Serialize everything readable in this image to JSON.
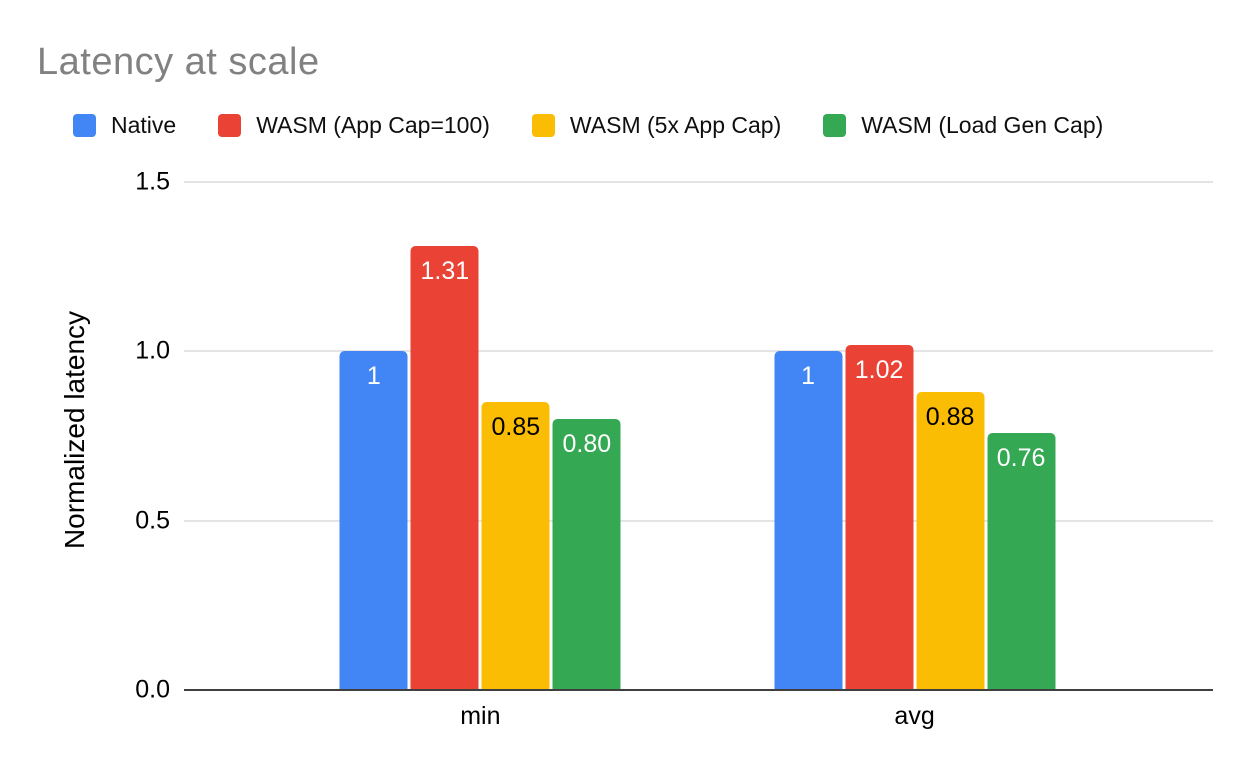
{
  "title": "Latency at scale",
  "colors": {
    "title_text": "#818181",
    "axis_baseline": "#3f3f3f",
    "gridline": "#e4e4e4",
    "background": "#ffffff",
    "label_text": "#000000"
  },
  "chart_data": {
    "type": "bar",
    "title": "Latency at scale",
    "categories": [
      "min",
      "avg"
    ],
    "series": [
      {
        "name": "Native",
        "color": "#4285F4",
        "values": [
          1.0,
          1.0
        ],
        "labels": [
          "1",
          "1"
        ],
        "label_color": "#ffffff"
      },
      {
        "name": "WASM (App Cap=100)",
        "color": "#EA4335",
        "values": [
          1.31,
          1.02
        ],
        "labels": [
          "1.31",
          "1.02"
        ],
        "label_color": "#ffffff"
      },
      {
        "name": "WASM (5x App Cap)",
        "color": "#FBBC04",
        "values": [
          0.85,
          0.88
        ],
        "labels": [
          "0.85",
          "0.88"
        ],
        "label_color": "#000000"
      },
      {
        "name": "WASM (Load Gen Cap)",
        "color": "#34A853",
        "values": [
          0.8,
          0.76
        ],
        "labels": [
          "0.80",
          "0.76"
        ],
        "label_color": "#ffffff"
      }
    ],
    "xlabel": "",
    "ylabel": "Normalized latency",
    "ylim": [
      0,
      1.5
    ],
    "yticks": [
      1.5,
      1.0,
      0.5,
      0.0
    ],
    "ytick_labels": [
      "1.5",
      "1.0",
      "0.5",
      "0.0"
    ],
    "grid": true,
    "legend_position": "top"
  }
}
